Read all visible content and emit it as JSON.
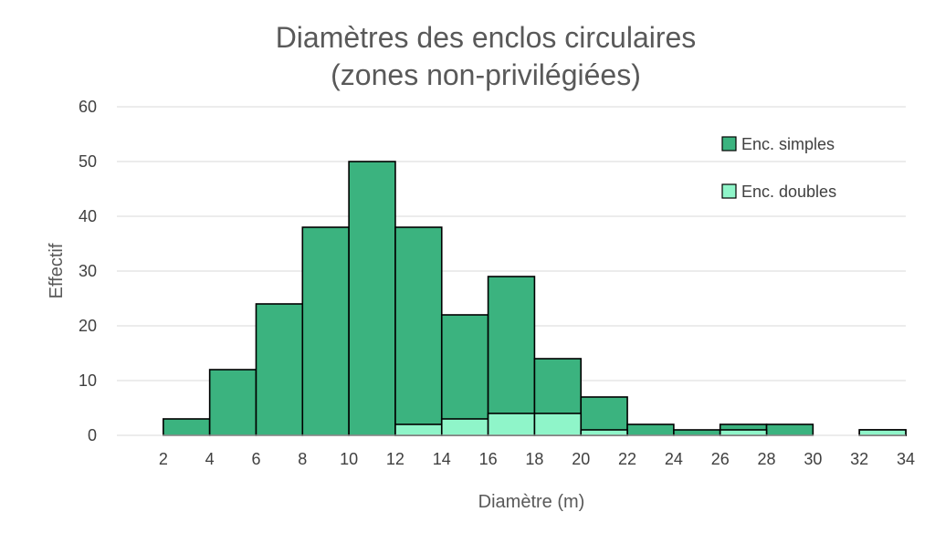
{
  "chart_data": {
    "type": "bar",
    "title_line1": "Diamètres des enclos circulaires",
    "title_line2": "(zones non-privilégiées)",
    "xlabel": "Diamètre (m)",
    "ylabel": "Effectif",
    "ylim": [
      0,
      60
    ],
    "yticks": [
      "0",
      "10",
      "20",
      "30",
      "40",
      "50",
      "60"
    ],
    "xlim": [
      0,
      34
    ],
    "xticks": [
      "2",
      "4",
      "6",
      "8",
      "10",
      "12",
      "14",
      "16",
      "18",
      "20",
      "22",
      "24",
      "26",
      "28",
      "30",
      "32",
      "34"
    ],
    "grid": true,
    "legend_position": "top-right",
    "colors": {
      "simples": "#3bb37f",
      "doubles": "#8ff5c9"
    },
    "series": [
      {
        "name": "Enc. simples",
        "key": "simples",
        "bins": [
          [
            2,
            4
          ],
          [
            4,
            6
          ],
          [
            6,
            8
          ],
          [
            8,
            10
          ],
          [
            10,
            12
          ],
          [
            12,
            14
          ],
          [
            14,
            16
          ],
          [
            16,
            18
          ],
          [
            18,
            20
          ],
          [
            20,
            22
          ],
          [
            22,
            24
          ],
          [
            24,
            26
          ],
          [
            26,
            28
          ],
          [
            28,
            30
          ],
          [
            32,
            34
          ]
        ],
        "totals": [
          3,
          12,
          24,
          38,
          50,
          38,
          22,
          29,
          14,
          7,
          2,
          1,
          2,
          2,
          1
        ]
      },
      {
        "name": "Enc. doubles",
        "key": "doubles",
        "bins": [
          [
            12,
            14
          ],
          [
            14,
            16
          ],
          [
            16,
            18
          ],
          [
            18,
            20
          ],
          [
            20,
            22
          ],
          [
            26,
            28
          ],
          [
            32,
            34
          ]
        ],
        "values": [
          2,
          3,
          4,
          4,
          1,
          1,
          1
        ]
      }
    ]
  }
}
